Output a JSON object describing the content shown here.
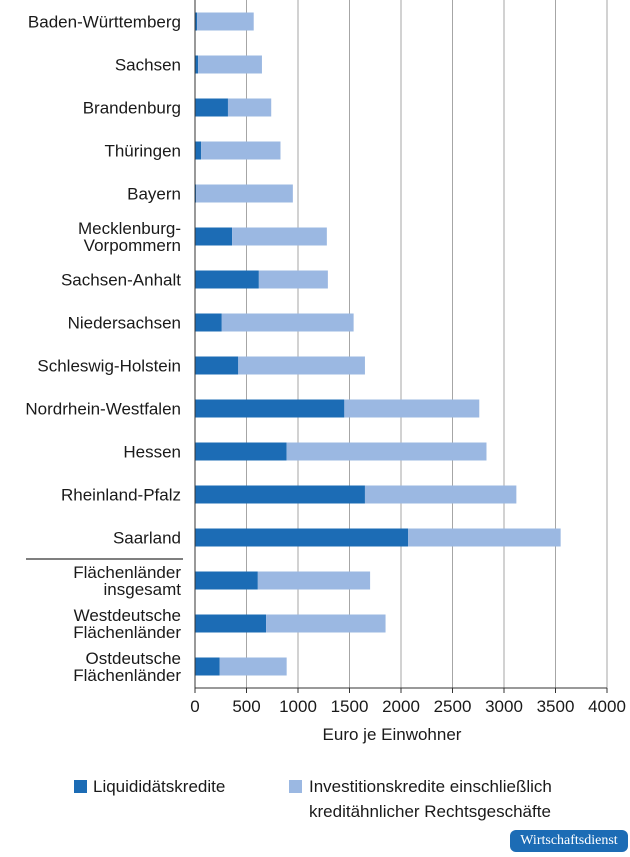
{
  "chart_data": {
    "type": "bar",
    "orientation": "horizontal",
    "stacked": true,
    "categories": [
      [
        "Baden-Württemberg"
      ],
      [
        "Sachsen"
      ],
      [
        "Brandenburg"
      ],
      [
        "Thüringen"
      ],
      [
        "Bayern"
      ],
      [
        "Mecklenburg-",
        "Vorpommern"
      ],
      [
        "Sachsen-Anhalt"
      ],
      [
        "Niedersachsen"
      ],
      [
        "Schleswig-Holstein"
      ],
      [
        "Nordrhein-Westfalen"
      ],
      [
        "Hessen"
      ],
      [
        "Rheinland-Pfalz"
      ],
      [
        "Saarland"
      ],
      [
        "Flächenländer",
        "insgesamt"
      ],
      [
        "Westdeutsche",
        "Flächenländer"
      ],
      [
        "Ostdeutsche",
        "Flächenländer"
      ]
    ],
    "separator_after_index": 12,
    "series": [
      {
        "name": "Liquididätskredite",
        "color": "#1c6cb5",
        "values": [
          20,
          30,
          320,
          60,
          10,
          360,
          620,
          260,
          420,
          1450,
          890,
          1650,
          2070,
          610,
          690,
          240
        ]
      },
      {
        "name_lines": [
          "Investitionskredite einschließlich",
          "kreditähnlicher Rechtsgeschäfte"
        ],
        "color": "#9bb8e2",
        "values": [
          550,
          620,
          420,
          770,
          940,
          920,
          670,
          1280,
          1230,
          1310,
          1940,
          1470,
          1480,
          1090,
          1160,
          650
        ]
      }
    ],
    "xlim": [
      0,
      4000
    ],
    "xticks": [
      0,
      500,
      1000,
      1500,
      2000,
      2500,
      3000,
      3500,
      4000
    ],
    "xlabel": "Euro je Einwohner",
    "grid": true,
    "legend_position": "bottom"
  },
  "source_badge": "Wirtschaftsdienst"
}
